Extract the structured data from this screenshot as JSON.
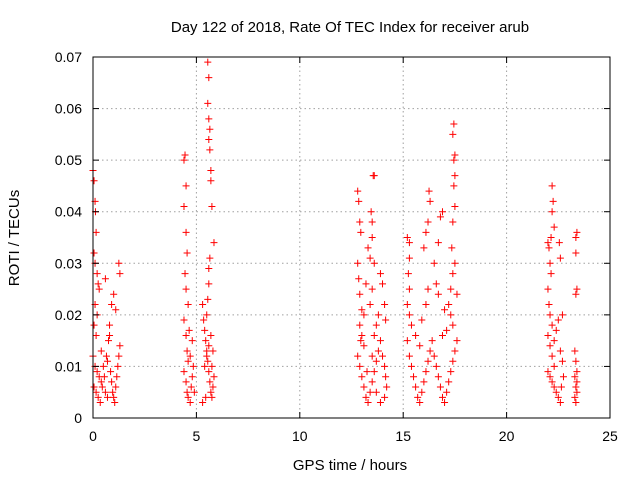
{
  "chart_data": {
    "type": "scatter",
    "title": "Day 122 of 2018, Rate Of TEC Index for receiver arub",
    "xlabel": "GPS time / hours",
    "ylabel": "ROTI / TECUs",
    "xlim": [
      0,
      25
    ],
    "ylim": [
      0,
      0.07
    ],
    "xticks": [
      0,
      5,
      10,
      15,
      20,
      25
    ],
    "xtick_labels": [
      "0",
      "5",
      "10",
      "15",
      "20",
      "25"
    ],
    "yticks": [
      0,
      0.01,
      0.02,
      0.03,
      0.04,
      0.05,
      0.06,
      0.07
    ],
    "ytick_labels": [
      "0",
      "0.01",
      "0.02",
      "0.03",
      "0.04",
      "0.05",
      "0.06",
      "0.07"
    ],
    "grid": true,
    "marker": "+",
    "color": "#ff0000",
    "series": [
      {
        "points": [
          [
            0.0,
            0.048
          ],
          [
            0.05,
            0.046
          ],
          [
            0.1,
            0.042
          ],
          [
            0.12,
            0.04
          ],
          [
            0.15,
            0.036
          ],
          [
            0.05,
            0.032
          ],
          [
            0.1,
            0.03
          ],
          [
            0.2,
            0.028
          ],
          [
            0.25,
            0.026
          ],
          [
            0.3,
            0.025
          ],
          [
            0.1,
            0.022
          ],
          [
            0.2,
            0.02
          ],
          [
            0.05,
            0.018
          ],
          [
            0.15,
            0.016
          ],
          [
            0.0,
            0.012
          ],
          [
            0.1,
            0.01
          ],
          [
            0.2,
            0.009
          ],
          [
            0.3,
            0.008
          ],
          [
            0.4,
            0.007
          ],
          [
            0.05,
            0.006
          ],
          [
            0.15,
            0.005
          ],
          [
            0.25,
            0.004
          ],
          [
            0.35,
            0.003
          ],
          [
            0.45,
            0.006
          ],
          [
            0.55,
            0.008
          ],
          [
            0.6,
            0.005
          ],
          [
            0.7,
            0.004
          ],
          [
            0.5,
            0.01
          ],
          [
            0.65,
            0.012
          ],
          [
            0.75,
            0.015
          ],
          [
            0.8,
            0.018
          ],
          [
            0.85,
            0.009
          ],
          [
            0.9,
            0.007
          ],
          [
            0.95,
            0.005
          ],
          [
            1.0,
            0.004
          ],
          [
            1.05,
            0.003
          ],
          [
            1.1,
            0.006
          ],
          [
            1.15,
            0.008
          ],
          [
            1.2,
            0.01
          ],
          [
            1.25,
            0.012
          ],
          [
            1.3,
            0.014
          ],
          [
            0.9,
            0.022
          ],
          [
            1.0,
            0.024
          ],
          [
            1.1,
            0.021
          ],
          [
            1.25,
            0.03
          ],
          [
            1.3,
            0.028
          ],
          [
            0.6,
            0.027
          ],
          [
            0.8,
            0.016
          ],
          [
            0.4,
            0.013
          ],
          [
            0.7,
            0.011
          ],
          [
            4.4,
            0.05
          ],
          [
            4.45,
            0.051
          ],
          [
            4.5,
            0.045
          ],
          [
            4.4,
            0.041
          ],
          [
            4.5,
            0.036
          ],
          [
            4.55,
            0.032
          ],
          [
            4.45,
            0.028
          ],
          [
            4.5,
            0.025
          ],
          [
            4.6,
            0.022
          ],
          [
            4.4,
            0.019
          ],
          [
            4.5,
            0.016
          ],
          [
            4.55,
            0.013
          ],
          [
            4.6,
            0.011
          ],
          [
            4.4,
            0.009
          ],
          [
            4.5,
            0.007
          ],
          [
            4.55,
            0.005
          ],
          [
            4.6,
            0.004
          ],
          [
            4.7,
            0.003
          ],
          [
            4.75,
            0.006
          ],
          [
            4.8,
            0.008
          ],
          [
            4.85,
            0.01
          ],
          [
            4.9,
            0.005
          ],
          [
            4.7,
            0.012
          ],
          [
            4.8,
            0.015
          ],
          [
            4.65,
            0.017
          ],
          [
            5.3,
            0.022
          ],
          [
            5.35,
            0.019
          ],
          [
            5.4,
            0.017
          ],
          [
            5.45,
            0.015
          ],
          [
            5.5,
            0.013
          ],
          [
            5.55,
            0.011
          ],
          [
            5.6,
            0.009
          ],
          [
            5.65,
            0.007
          ],
          [
            5.7,
            0.005
          ],
          [
            5.75,
            0.004
          ],
          [
            5.8,
            0.006
          ],
          [
            5.85,
            0.008
          ],
          [
            5.4,
            0.01
          ],
          [
            5.5,
            0.012
          ],
          [
            5.6,
            0.014
          ],
          [
            5.7,
            0.016
          ],
          [
            5.5,
            0.02
          ],
          [
            5.55,
            0.023
          ],
          [
            5.6,
            0.026
          ],
          [
            5.6,
            0.029
          ],
          [
            5.65,
            0.031
          ],
          [
            5.55,
            0.069
          ],
          [
            5.6,
            0.066
          ],
          [
            5.55,
            0.061
          ],
          [
            5.6,
            0.058
          ],
          [
            5.65,
            0.056
          ],
          [
            5.6,
            0.054
          ],
          [
            5.65,
            0.052
          ],
          [
            5.7,
            0.048
          ],
          [
            5.7,
            0.046
          ],
          [
            5.75,
            0.041
          ],
          [
            5.85,
            0.034
          ],
          [
            5.3,
            0.003
          ],
          [
            5.45,
            0.004
          ],
          [
            5.75,
            0.01
          ],
          [
            5.8,
            0.013
          ],
          [
            12.8,
            0.044
          ],
          [
            12.85,
            0.042
          ],
          [
            12.9,
            0.038
          ],
          [
            12.95,
            0.036
          ],
          [
            12.8,
            0.03
          ],
          [
            12.85,
            0.027
          ],
          [
            12.9,
            0.024
          ],
          [
            13.0,
            0.021
          ],
          [
            12.9,
            0.018
          ],
          [
            13.0,
            0.016
          ],
          [
            13.1,
            0.014
          ],
          [
            12.8,
            0.012
          ],
          [
            12.9,
            0.01
          ],
          [
            13.0,
            0.008
          ],
          [
            13.1,
            0.006
          ],
          [
            13.2,
            0.004
          ],
          [
            13.3,
            0.003
          ],
          [
            13.4,
            0.005
          ],
          [
            13.5,
            0.007
          ],
          [
            13.6,
            0.009
          ],
          [
            13.7,
            0.011
          ],
          [
            13.8,
            0.013
          ],
          [
            13.9,
            0.015
          ],
          [
            14.0,
            0.012
          ],
          [
            14.1,
            0.01
          ],
          [
            14.15,
            0.008
          ],
          [
            14.2,
            0.006
          ],
          [
            14.1,
            0.004
          ],
          [
            13.9,
            0.003
          ],
          [
            13.7,
            0.005
          ],
          [
            13.5,
            0.012
          ],
          [
            13.6,
            0.016
          ],
          [
            13.7,
            0.018
          ],
          [
            13.8,
            0.02
          ],
          [
            13.4,
            0.022
          ],
          [
            13.5,
            0.025
          ],
          [
            13.55,
            0.047
          ],
          [
            13.6,
            0.047
          ],
          [
            13.45,
            0.04
          ],
          [
            13.5,
            0.038
          ],
          [
            13.5,
            0.035
          ],
          [
            13.3,
            0.033
          ],
          [
            13.4,
            0.031
          ],
          [
            13.6,
            0.03
          ],
          [
            13.9,
            0.028
          ],
          [
            14.0,
            0.026
          ],
          [
            14.1,
            0.022
          ],
          [
            14.15,
            0.019
          ],
          [
            13.2,
            0.026
          ],
          [
            13.1,
            0.02
          ],
          [
            12.95,
            0.015
          ],
          [
            13.25,
            0.009
          ],
          [
            15.2,
            0.035
          ],
          [
            15.3,
            0.034
          ],
          [
            15.3,
            0.031
          ],
          [
            15.25,
            0.028
          ],
          [
            15.3,
            0.025
          ],
          [
            15.2,
            0.022
          ],
          [
            15.3,
            0.02
          ],
          [
            15.4,
            0.018
          ],
          [
            15.2,
            0.015
          ],
          [
            15.3,
            0.012
          ],
          [
            15.4,
            0.01
          ],
          [
            15.5,
            0.008
          ],
          [
            15.6,
            0.006
          ],
          [
            15.7,
            0.004
          ],
          [
            15.8,
            0.003
          ],
          [
            15.9,
            0.005
          ],
          [
            16.0,
            0.007
          ],
          [
            16.1,
            0.009
          ],
          [
            16.2,
            0.011
          ],
          [
            16.3,
            0.013
          ],
          [
            16.4,
            0.015
          ],
          [
            16.5,
            0.012
          ],
          [
            16.6,
            0.01
          ],
          [
            16.7,
            0.008
          ],
          [
            16.8,
            0.006
          ],
          [
            16.9,
            0.004
          ],
          [
            17.0,
            0.003
          ],
          [
            17.1,
            0.005
          ],
          [
            17.2,
            0.007
          ],
          [
            17.3,
            0.009
          ],
          [
            17.4,
            0.011
          ],
          [
            17.5,
            0.013
          ],
          [
            17.6,
            0.015
          ],
          [
            17.4,
            0.018
          ],
          [
            17.3,
            0.02
          ],
          [
            17.2,
            0.022
          ],
          [
            17.3,
            0.025
          ],
          [
            17.4,
            0.028
          ],
          [
            17.5,
            0.03
          ],
          [
            17.35,
            0.033
          ],
          [
            17.4,
            0.038
          ],
          [
            17.5,
            0.041
          ],
          [
            17.45,
            0.045
          ],
          [
            17.5,
            0.047
          ],
          [
            17.45,
            0.05
          ],
          [
            17.5,
            0.051
          ],
          [
            17.4,
            0.055
          ],
          [
            17.45,
            0.057
          ],
          [
            16.0,
            0.033
          ],
          [
            16.1,
            0.036
          ],
          [
            16.2,
            0.038
          ],
          [
            16.3,
            0.042
          ],
          [
            16.25,
            0.044
          ],
          [
            16.8,
            0.039
          ],
          [
            16.9,
            0.04
          ],
          [
            16.7,
            0.034
          ],
          [
            16.5,
            0.03
          ],
          [
            16.6,
            0.026
          ],
          [
            16.7,
            0.024
          ],
          [
            16.2,
            0.025
          ],
          [
            16.1,
            0.022
          ],
          [
            15.9,
            0.019
          ],
          [
            17.0,
            0.021
          ],
          [
            17.1,
            0.017
          ],
          [
            15.6,
            0.016
          ],
          [
            15.8,
            0.014
          ],
          [
            16.9,
            0.016
          ],
          [
            17.6,
            0.024
          ],
          [
            22.0,
            0.034
          ],
          [
            22.05,
            0.033
          ],
          [
            22.1,
            0.03
          ],
          [
            22.15,
            0.028
          ],
          [
            22.2,
            0.045
          ],
          [
            22.25,
            0.042
          ],
          [
            22.2,
            0.04
          ],
          [
            22.3,
            0.037
          ],
          [
            22.15,
            0.035
          ],
          [
            22.0,
            0.025
          ],
          [
            22.05,
            0.022
          ],
          [
            22.1,
            0.02
          ],
          [
            22.2,
            0.018
          ],
          [
            22.0,
            0.016
          ],
          [
            22.1,
            0.014
          ],
          [
            22.2,
            0.012
          ],
          [
            22.3,
            0.01
          ],
          [
            22.0,
            0.009
          ],
          [
            22.1,
            0.008
          ],
          [
            22.2,
            0.007
          ],
          [
            22.3,
            0.006
          ],
          [
            22.4,
            0.005
          ],
          [
            22.5,
            0.004
          ],
          [
            22.6,
            0.003
          ],
          [
            22.3,
            0.015
          ],
          [
            22.4,
            0.017
          ],
          [
            22.5,
            0.019
          ],
          [
            22.6,
            0.013
          ],
          [
            22.7,
            0.011
          ],
          [
            22.6,
            0.031
          ],
          [
            22.55,
            0.034
          ],
          [
            22.7,
            0.02
          ],
          [
            22.75,
            0.008
          ],
          [
            22.65,
            0.006
          ],
          [
            23.35,
            0.035
          ],
          [
            23.4,
            0.036
          ],
          [
            23.35,
            0.032
          ],
          [
            23.4,
            0.025
          ],
          [
            23.35,
            0.024
          ],
          [
            23.3,
            0.013
          ],
          [
            23.35,
            0.011
          ],
          [
            23.4,
            0.009
          ],
          [
            23.3,
            0.008
          ],
          [
            23.4,
            0.007
          ],
          [
            23.35,
            0.006
          ],
          [
            23.4,
            0.005
          ],
          [
            23.3,
            0.004
          ],
          [
            23.35,
            0.003
          ]
        ]
      }
    ]
  }
}
